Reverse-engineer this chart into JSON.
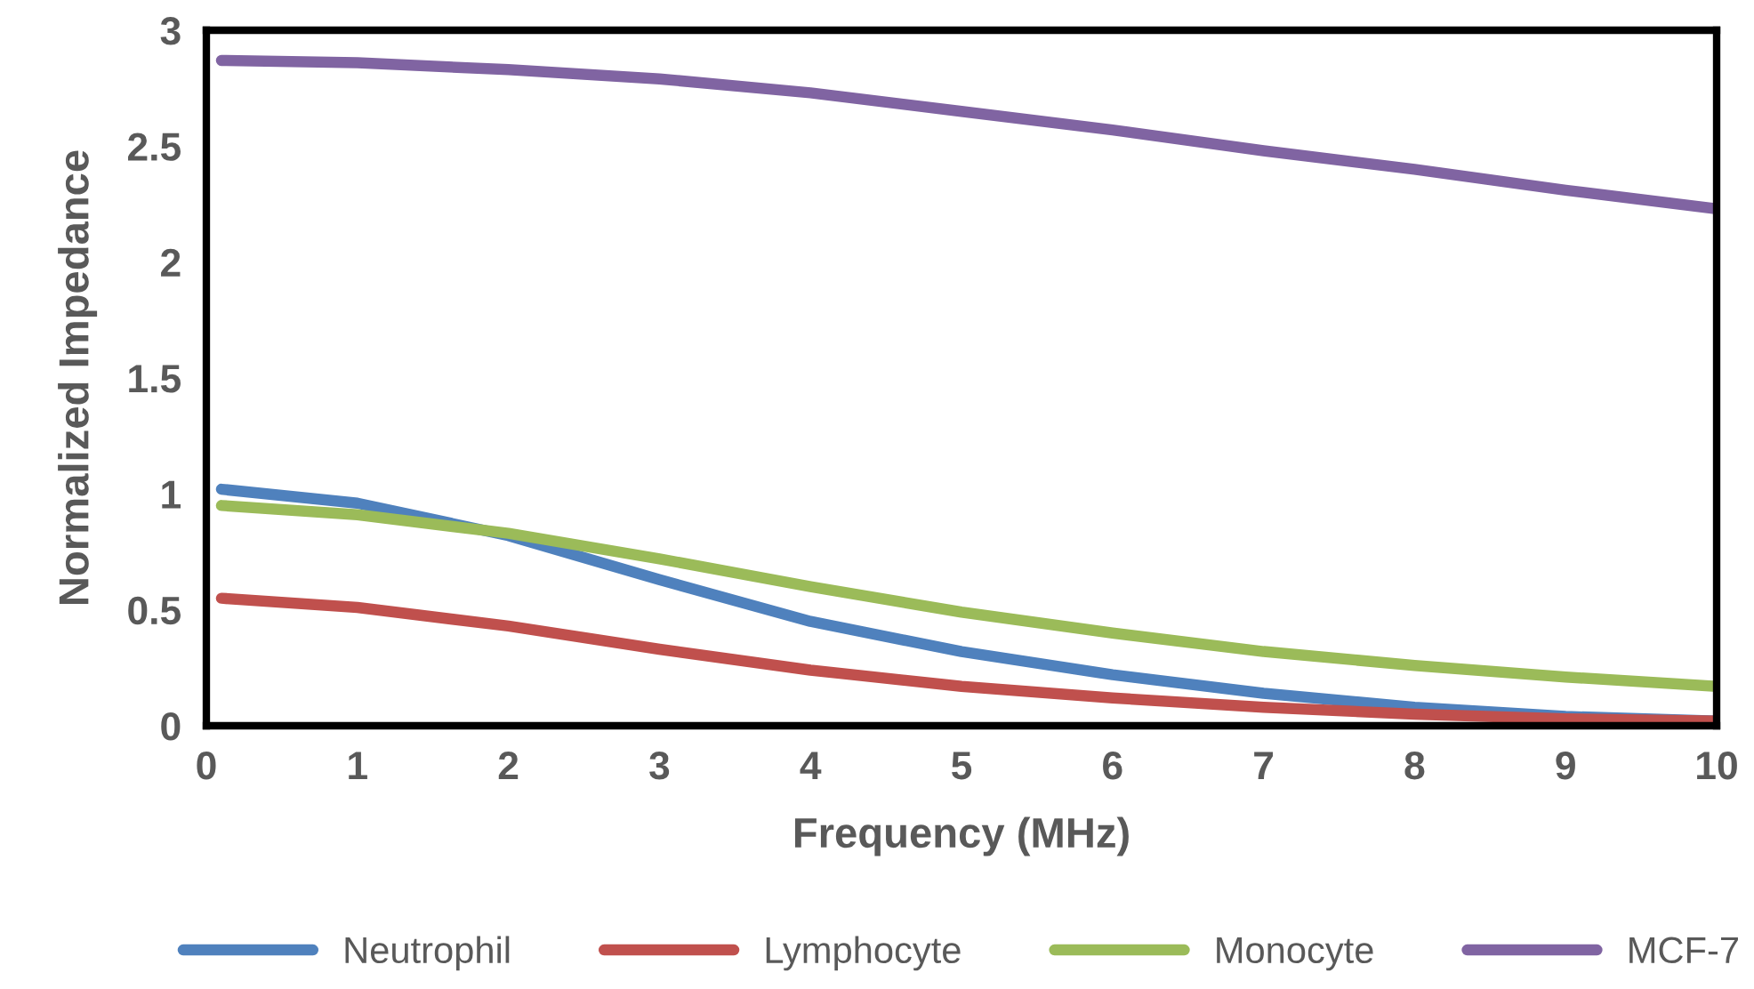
{
  "chart_data": {
    "type": "line",
    "xlabel": "Frequency (MHz)",
    "ylabel": "Normalized Impedance",
    "x": [
      0.1,
      1,
      2,
      3,
      4,
      5,
      6,
      7,
      8,
      9,
      10
    ],
    "series": [
      {
        "name": "Neutrophil",
        "color": "#4f81bd",
        "values": [
          1.02,
          0.96,
          0.82,
          0.63,
          0.45,
          0.32,
          0.22,
          0.14,
          0.08,
          0.04,
          0.02
        ]
      },
      {
        "name": "Lymphocyte",
        "color": "#c0504d",
        "values": [
          0.55,
          0.51,
          0.43,
          0.33,
          0.24,
          0.17,
          0.12,
          0.08,
          0.05,
          0.03,
          0.02
        ]
      },
      {
        "name": "Monocyte",
        "color": "#9bbb59",
        "values": [
          0.95,
          0.91,
          0.83,
          0.72,
          0.6,
          0.49,
          0.4,
          0.32,
          0.26,
          0.21,
          0.17
        ]
      },
      {
        "name": "MCF-7",
        "color": "#8064a2",
        "values": [
          2.87,
          2.86,
          2.83,
          2.79,
          2.73,
          2.65,
          2.57,
          2.48,
          2.4,
          2.31,
          2.23
        ]
      }
    ],
    "xlim": [
      0,
      10
    ],
    "xticks": [
      0,
      1,
      2,
      3,
      4,
      5,
      6,
      7,
      8,
      9,
      10
    ],
    "ylim": [
      0,
      3
    ],
    "yticks": [
      0,
      0.5,
      1,
      1.5,
      2,
      2.5,
      3
    ],
    "grid": false,
    "legend": "bottom",
    "marker": "none",
    "line_style": "solid"
  }
}
